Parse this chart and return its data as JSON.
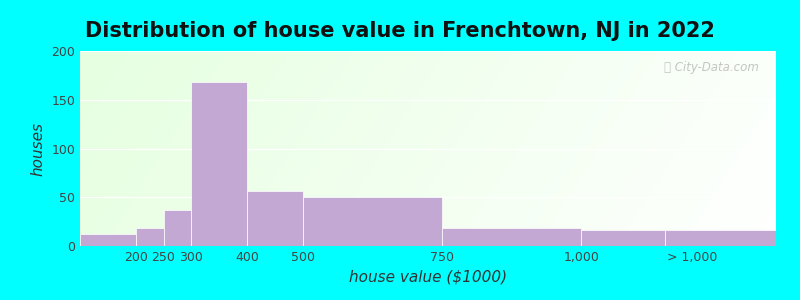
{
  "title": "Distribution of house value in Frenchtown, NJ in 2022",
  "xlabel": "house value ($1000)",
  "ylabel": "houses",
  "ylim": [
    0,
    200
  ],
  "yticks": [
    0,
    50,
    100,
    150,
    200
  ],
  "bar_color": "#c4a8d4",
  "background_outer": "#00ffff",
  "bar_left_edges": [
    100,
    200,
    250,
    300,
    400,
    500,
    750,
    1000,
    1150
  ],
  "bar_widths": [
    100,
    50,
    50,
    100,
    100,
    250,
    250,
    150,
    200
  ],
  "bar_heights": [
    12,
    18,
    37,
    168,
    56,
    50,
    18,
    16,
    16
  ],
  "xmin": 100,
  "xmax": 1350,
  "xtick_positions": [
    200,
    250,
    300,
    400,
    500,
    750,
    1000,
    1200
  ],
  "xtick_labels": [
    "200",
    "250",
    "300",
    "400",
    "500",
    "750",
    "1,000",
    "> 1,000"
  ],
  "title_fontsize": 15,
  "axis_fontsize": 11,
  "tick_fontsize": 9,
  "watermark_text": "City-Data.com"
}
